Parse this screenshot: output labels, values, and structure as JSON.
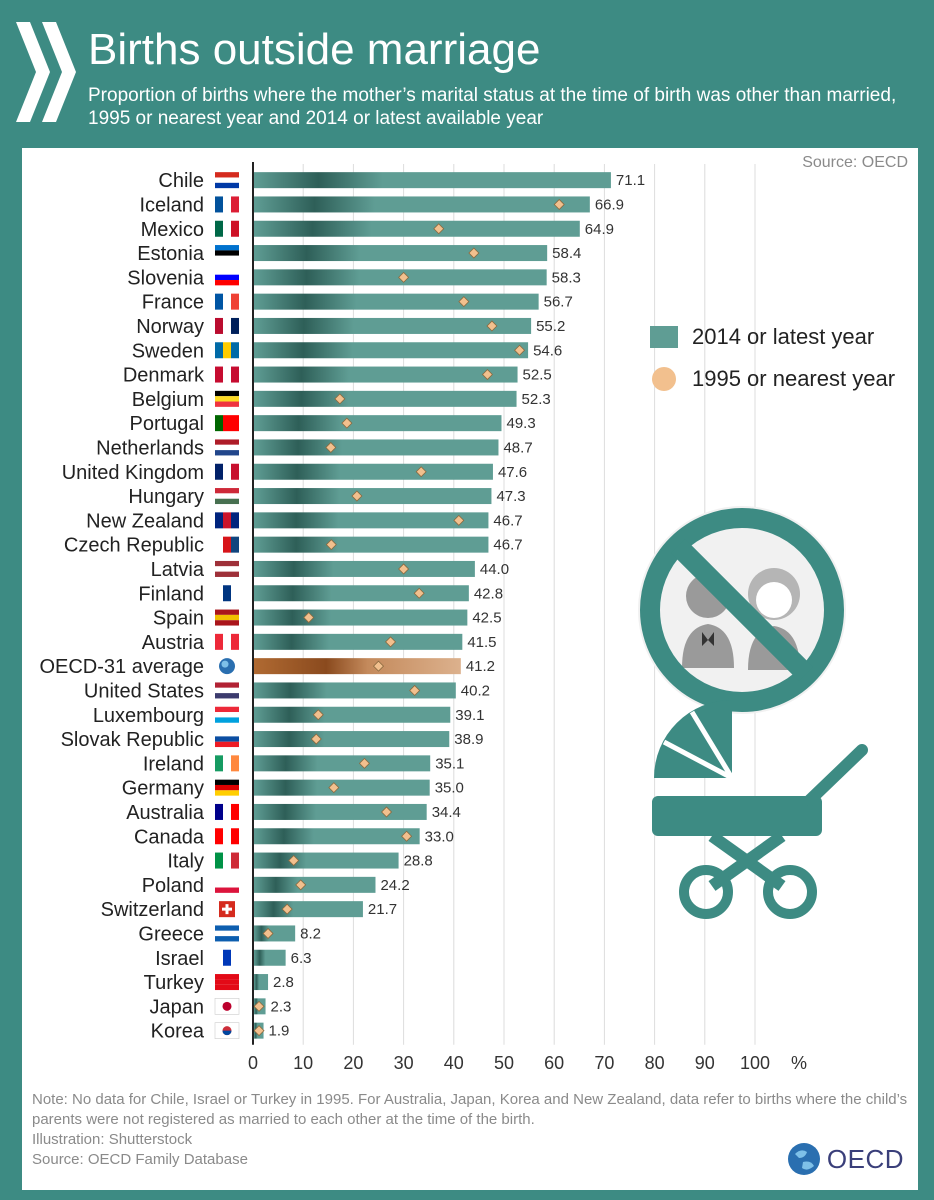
{
  "header": {
    "title": "Births outside marriage",
    "subtitle": "Proportion of births where the mother’s marital status at the time of birth was other than married, 1995 or nearest year and 2014 or latest available year"
  },
  "source_top": "Source: OECD",
  "legend": {
    "bar_label": "2014 or latest year",
    "dot_label": "1995 or nearest year"
  },
  "colors": {
    "background": "#3d8b83",
    "bar": "#5f9d94",
    "bar_dark": "#2e5f58",
    "average_bar": "#b06a32",
    "average_bar_light": "#dcb18d",
    "marker": "#f2c08e",
    "marker_edge": "#8a6a3f"
  },
  "chart_data": {
    "type": "bar",
    "orientation": "horizontal",
    "title": "Births outside marriage",
    "xlabel": "%",
    "xlim": [
      0,
      100
    ],
    "xticks": [
      0,
      10,
      20,
      30,
      40,
      50,
      60,
      70,
      80,
      90,
      100
    ],
    "grid": true,
    "legend_position": "right",
    "categories": [
      "Chile",
      "Iceland",
      "Mexico",
      "Estonia",
      "Slovenia",
      "France",
      "Norway",
      "Sweden",
      "Denmark",
      "Belgium",
      "Portugal",
      "Netherlands",
      "United Kingdom",
      "Hungary",
      "New Zealand",
      "Czech Republic",
      "Latvia",
      "Finland",
      "Spain",
      "Austria",
      "OECD-31 average",
      "United States",
      "Luxembourg",
      "Slovak Republic",
      "Ireland",
      "Germany",
      "Australia",
      "Canada",
      "Italy",
      "Poland",
      "Switzerland",
      "Greece",
      "Israel",
      "Turkey",
      "Japan",
      "Korea"
    ],
    "series": [
      {
        "name": "2014 or latest year",
        "values": [
          71.1,
          66.9,
          64.9,
          58.4,
          58.3,
          56.7,
          55.2,
          54.6,
          52.5,
          52.3,
          49.3,
          48.7,
          47.6,
          47.3,
          46.7,
          46.7,
          44.0,
          42.8,
          42.5,
          41.5,
          41.2,
          40.2,
          39.1,
          38.9,
          35.1,
          35.0,
          34.4,
          33.0,
          28.8,
          24.2,
          21.7,
          8.2,
          6.3,
          2.8,
          2.3,
          1.9
        ],
        "labels": [
          "71.1",
          "66.9",
          "64.9",
          "58.4",
          "58.3",
          "56.7",
          "55.2",
          "54.6",
          "52.5",
          "52.3",
          "49.3",
          "48.7",
          "47.6",
          "47.3",
          "46.7",
          "46.7",
          "44.0",
          "42.8",
          "42.5",
          "41.5",
          "41.2",
          "40.2",
          "39.1",
          "38.9",
          "35.1",
          "35.0",
          "34.4",
          "33.0",
          "28.8",
          "24.2",
          "21.7",
          "8.2",
          "6.3",
          "2.8",
          "2.3",
          "1.9"
        ]
      },
      {
        "name": "1995 or nearest year",
        "values": [
          null,
          61,
          37,
          44,
          30,
          42,
          47.6,
          53.1,
          46.7,
          17.3,
          18.7,
          15.5,
          33.5,
          20.7,
          41,
          15.6,
          30,
          33.1,
          11.1,
          27.4,
          25,
          32.2,
          13,
          12.6,
          22.2,
          16.1,
          26.6,
          30.6,
          8.1,
          9.5,
          6.8,
          3,
          null,
          null,
          1.2,
          1.2
        ]
      }
    ],
    "average_category": "OECD-31 average"
  },
  "flags": [
    "Chile flag",
    "Iceland flag",
    "Mexico flag",
    "Estonia flag",
    "Slovenia flag",
    "France flag",
    "Norway flag",
    "Sweden flag",
    "Denmark flag",
    "Belgium flag",
    "Portugal flag",
    "Netherlands flag",
    "United Kingdom flag",
    "Hungary flag",
    "New Zealand flag",
    "Czech Republic flag",
    "Latvia flag",
    "Finland flag",
    "Spain flag",
    "Austria flag",
    "OECD globe",
    "United States flag",
    "Luxembourg flag",
    "Slovak Republic flag",
    "Ireland flag",
    "Germany flag",
    "Australia flag",
    "Canada flag",
    "Italy flag",
    "Poland flag",
    "Switzerland flag",
    "Greece flag",
    "Israel flag",
    "Turkey flag",
    "Japan flag",
    "Korea flag"
  ],
  "illustrations": [
    "no-marriage-icon",
    "baby-stroller-icon"
  ],
  "notes": {
    "note": "Note: No data for Chile, Israel or Turkey in 1995. For Australia, Japan, Korea and New Zealand, data refer to births where the child’s parents were not registered as married to each other at the time of the birth.",
    "illustration": "Illustration: Shutterstock",
    "source": "Source: OECD Family Database"
  },
  "logo": {
    "text": "OECD",
    "icon": "oecd-globe-icon"
  }
}
